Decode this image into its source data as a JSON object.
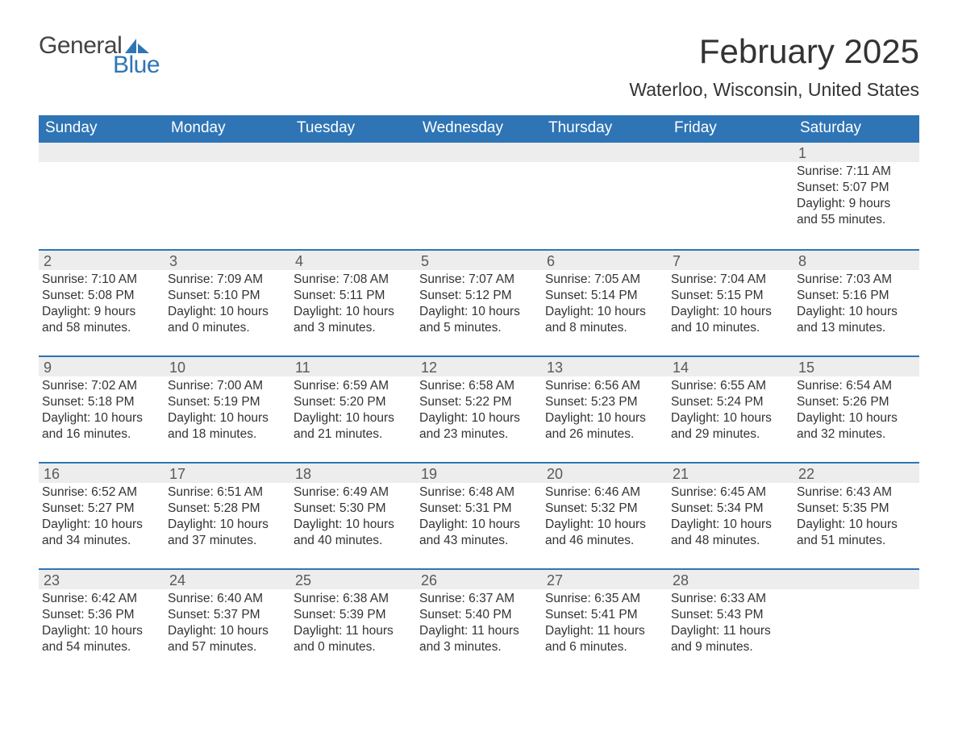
{
  "logo": {
    "line1": "General",
    "line2": "Blue",
    "sail_color": "#2f75b5"
  },
  "title": "February 2025",
  "location": "Waterloo, Wisconsin, United States",
  "header_bg": "#2f75b5",
  "header_fg": "#ffffff",
  "daynum_bg": "#ededed",
  "row_border": "#2f75b5",
  "text_color": "#333333",
  "day_names": [
    "Sunday",
    "Monday",
    "Tuesday",
    "Wednesday",
    "Thursday",
    "Friday",
    "Saturday"
  ],
  "weeks": [
    [
      null,
      null,
      null,
      null,
      null,
      null,
      {
        "n": "1",
        "sr": "Sunrise: 7:11 AM",
        "ss": "Sunset: 5:07 PM",
        "d1": "Daylight: 9 hours",
        "d2": "and 55 minutes."
      }
    ],
    [
      {
        "n": "2",
        "sr": "Sunrise: 7:10 AM",
        "ss": "Sunset: 5:08 PM",
        "d1": "Daylight: 9 hours",
        "d2": "and 58 minutes."
      },
      {
        "n": "3",
        "sr": "Sunrise: 7:09 AM",
        "ss": "Sunset: 5:10 PM",
        "d1": "Daylight: 10 hours",
        "d2": "and 0 minutes."
      },
      {
        "n": "4",
        "sr": "Sunrise: 7:08 AM",
        "ss": "Sunset: 5:11 PM",
        "d1": "Daylight: 10 hours",
        "d2": "and 3 minutes."
      },
      {
        "n": "5",
        "sr": "Sunrise: 7:07 AM",
        "ss": "Sunset: 5:12 PM",
        "d1": "Daylight: 10 hours",
        "d2": "and 5 minutes."
      },
      {
        "n": "6",
        "sr": "Sunrise: 7:05 AM",
        "ss": "Sunset: 5:14 PM",
        "d1": "Daylight: 10 hours",
        "d2": "and 8 minutes."
      },
      {
        "n": "7",
        "sr": "Sunrise: 7:04 AM",
        "ss": "Sunset: 5:15 PM",
        "d1": "Daylight: 10 hours",
        "d2": "and 10 minutes."
      },
      {
        "n": "8",
        "sr": "Sunrise: 7:03 AM",
        "ss": "Sunset: 5:16 PM",
        "d1": "Daylight: 10 hours",
        "d2": "and 13 minutes."
      }
    ],
    [
      {
        "n": "9",
        "sr": "Sunrise: 7:02 AM",
        "ss": "Sunset: 5:18 PM",
        "d1": "Daylight: 10 hours",
        "d2": "and 16 minutes."
      },
      {
        "n": "10",
        "sr": "Sunrise: 7:00 AM",
        "ss": "Sunset: 5:19 PM",
        "d1": "Daylight: 10 hours",
        "d2": "and 18 minutes."
      },
      {
        "n": "11",
        "sr": "Sunrise: 6:59 AM",
        "ss": "Sunset: 5:20 PM",
        "d1": "Daylight: 10 hours",
        "d2": "and 21 minutes."
      },
      {
        "n": "12",
        "sr": "Sunrise: 6:58 AM",
        "ss": "Sunset: 5:22 PM",
        "d1": "Daylight: 10 hours",
        "d2": "and 23 minutes."
      },
      {
        "n": "13",
        "sr": "Sunrise: 6:56 AM",
        "ss": "Sunset: 5:23 PM",
        "d1": "Daylight: 10 hours",
        "d2": "and 26 minutes."
      },
      {
        "n": "14",
        "sr": "Sunrise: 6:55 AM",
        "ss": "Sunset: 5:24 PM",
        "d1": "Daylight: 10 hours",
        "d2": "and 29 minutes."
      },
      {
        "n": "15",
        "sr": "Sunrise: 6:54 AM",
        "ss": "Sunset: 5:26 PM",
        "d1": "Daylight: 10 hours",
        "d2": "and 32 minutes."
      }
    ],
    [
      {
        "n": "16",
        "sr": "Sunrise: 6:52 AM",
        "ss": "Sunset: 5:27 PM",
        "d1": "Daylight: 10 hours",
        "d2": "and 34 minutes."
      },
      {
        "n": "17",
        "sr": "Sunrise: 6:51 AM",
        "ss": "Sunset: 5:28 PM",
        "d1": "Daylight: 10 hours",
        "d2": "and 37 minutes."
      },
      {
        "n": "18",
        "sr": "Sunrise: 6:49 AM",
        "ss": "Sunset: 5:30 PM",
        "d1": "Daylight: 10 hours",
        "d2": "and 40 minutes."
      },
      {
        "n": "19",
        "sr": "Sunrise: 6:48 AM",
        "ss": "Sunset: 5:31 PM",
        "d1": "Daylight: 10 hours",
        "d2": "and 43 minutes."
      },
      {
        "n": "20",
        "sr": "Sunrise: 6:46 AM",
        "ss": "Sunset: 5:32 PM",
        "d1": "Daylight: 10 hours",
        "d2": "and 46 minutes."
      },
      {
        "n": "21",
        "sr": "Sunrise: 6:45 AM",
        "ss": "Sunset: 5:34 PM",
        "d1": "Daylight: 10 hours",
        "d2": "and 48 minutes."
      },
      {
        "n": "22",
        "sr": "Sunrise: 6:43 AM",
        "ss": "Sunset: 5:35 PM",
        "d1": "Daylight: 10 hours",
        "d2": "and 51 minutes."
      }
    ],
    [
      {
        "n": "23",
        "sr": "Sunrise: 6:42 AM",
        "ss": "Sunset: 5:36 PM",
        "d1": "Daylight: 10 hours",
        "d2": "and 54 minutes."
      },
      {
        "n": "24",
        "sr": "Sunrise: 6:40 AM",
        "ss": "Sunset: 5:37 PM",
        "d1": "Daylight: 10 hours",
        "d2": "and 57 minutes."
      },
      {
        "n": "25",
        "sr": "Sunrise: 6:38 AM",
        "ss": "Sunset: 5:39 PM",
        "d1": "Daylight: 11 hours",
        "d2": "and 0 minutes."
      },
      {
        "n": "26",
        "sr": "Sunrise: 6:37 AM",
        "ss": "Sunset: 5:40 PM",
        "d1": "Daylight: 11 hours",
        "d2": "and 3 minutes."
      },
      {
        "n": "27",
        "sr": "Sunrise: 6:35 AM",
        "ss": "Sunset: 5:41 PM",
        "d1": "Daylight: 11 hours",
        "d2": "and 6 minutes."
      },
      {
        "n": "28",
        "sr": "Sunrise: 6:33 AM",
        "ss": "Sunset: 5:43 PM",
        "d1": "Daylight: 11 hours",
        "d2": "and 9 minutes."
      },
      null
    ]
  ]
}
